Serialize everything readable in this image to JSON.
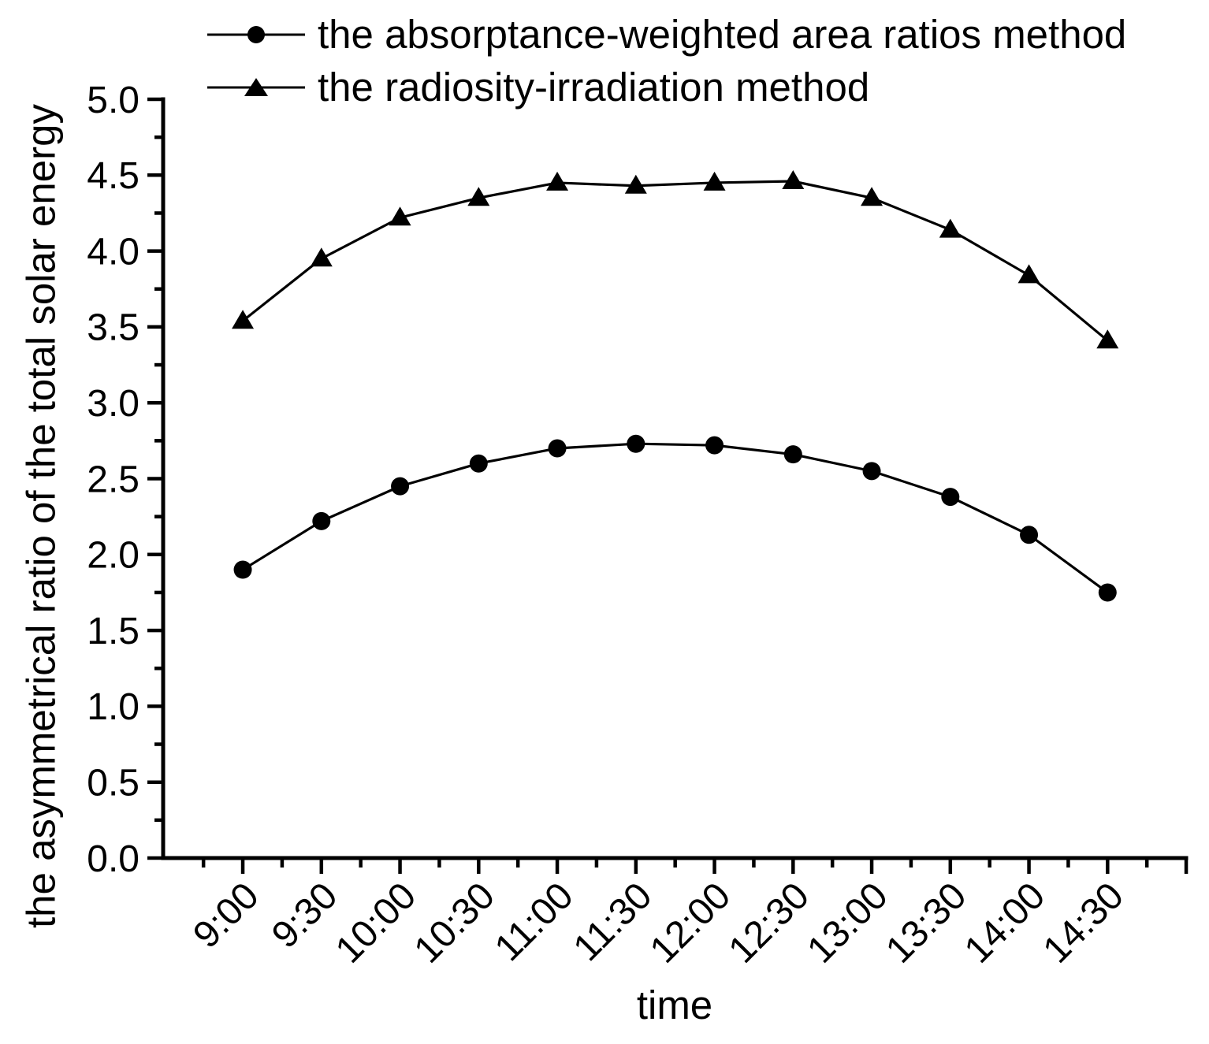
{
  "figure": {
    "background_color": "#ffffff",
    "ink_color": "#000000"
  },
  "chart_data": {
    "type": "line",
    "title": "",
    "xlabel": "time",
    "ylabel": "the asymmetrical ratio of the total solar energy",
    "categories": [
      "9:00",
      "9:30",
      "10:00",
      "10:30",
      "11:00",
      "11:30",
      "12:00",
      "12:30",
      "13:00",
      "13:30",
      "14:00",
      "14:30"
    ],
    "series": [
      {
        "name": "the absorptance-weighted area ratios method",
        "marker": "circle",
        "color": "#000000",
        "values": [
          1.9,
          2.22,
          2.45,
          2.6,
          2.7,
          2.73,
          2.72,
          2.66,
          2.55,
          2.38,
          2.13,
          1.75
        ]
      },
      {
        "name": "the radiosity-irradiation method",
        "marker": "triangle-up",
        "color": "#000000",
        "values": [
          3.54,
          3.95,
          4.22,
          4.35,
          4.45,
          4.43,
          4.45,
          4.46,
          4.35,
          4.14,
          3.84,
          3.41
        ]
      }
    ],
    "ylim": [
      0.0,
      5.0
    ],
    "ytick_step": 0.5,
    "yminor_step": 0.25,
    "ytick_format_decimals": 1,
    "xtick_rotation": -45,
    "grid": false,
    "legend_position": "top-left"
  }
}
